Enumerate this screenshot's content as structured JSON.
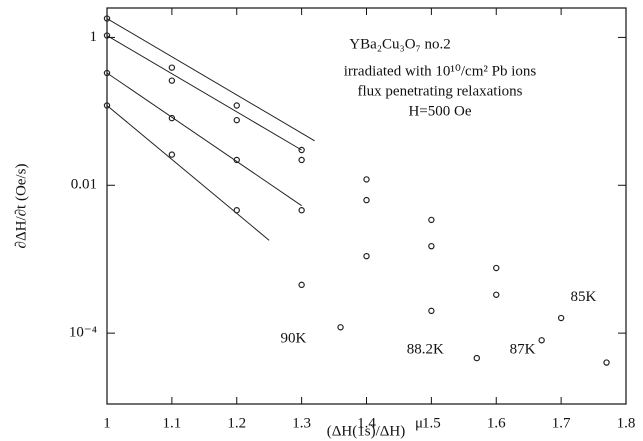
{
  "chart_data": {
    "type": "scatter",
    "annotations": [
      "YBa₂Cu₃O₇ no.2",
      "irradiated with 10¹⁰/cm² Pb ions",
      "flux penetrating relaxations",
      "H=500 Oe"
    ],
    "xlabel": "(ΔH(1s)/ΔH)",
    "xlabel_exp": "μ",
    "ylabel": "∂ΔH/∂t (Oe/s)",
    "xlim": [
      1,
      1.8
    ],
    "xticks": [
      1,
      1.1,
      1.2,
      1.3,
      1.4,
      1.5,
      1.6,
      1.7,
      1.8
    ],
    "ylim": [
      1.1e-05,
      2.5
    ],
    "log_y": true,
    "yticks": [
      1,
      0.01,
      {
        "value": 0.0001,
        "label": "10⁻⁴"
      }
    ],
    "color": "#222222",
    "series": [
      {
        "name": "85K",
        "x": [
          1,
          1.1,
          1.2,
          1.3,
          1.4,
          1.5,
          1.6,
          1.7,
          1.77
        ],
        "values": [
          1.8,
          0.39,
          0.12,
          0.03,
          0.012,
          0.0034,
          0.00076,
          0.00016,
          4e-05
        ],
        "fit_x": [
          1,
          1.32
        ],
        "fit_y": [
          1.8,
          0.04
        ]
      },
      {
        "name": "87K",
        "x": [
          1,
          1.1,
          1.2,
          1.3,
          1.4,
          1.5,
          1.6,
          1.67
        ],
        "values": [
          1.06,
          0.26,
          0.076,
          0.022,
          0.0063,
          0.0015,
          0.00033,
          8e-05
        ],
        "fit_x": [
          1,
          1.3
        ],
        "fit_y": [
          1.06,
          0.03
        ]
      },
      {
        "name": "88.2K",
        "x": [
          1,
          1.1,
          1.2,
          1.3,
          1.4,
          1.5,
          1.57
        ],
        "values": [
          0.33,
          0.081,
          0.022,
          0.0046,
          0.0011,
          0.0002,
          4.6e-05
        ],
        "fit_x": [
          1,
          1.3
        ],
        "fit_y": [
          0.33,
          0.0053
        ]
      },
      {
        "name": "90K",
        "x": [
          1,
          1.1,
          1.2,
          1.3,
          1.36
        ],
        "values": [
          0.12,
          0.026,
          0.0046,
          0.00045,
          0.00012
        ],
        "fit_x": [
          1,
          1.25
        ],
        "fit_y": [
          0.12,
          0.0018
        ]
      }
    ]
  }
}
